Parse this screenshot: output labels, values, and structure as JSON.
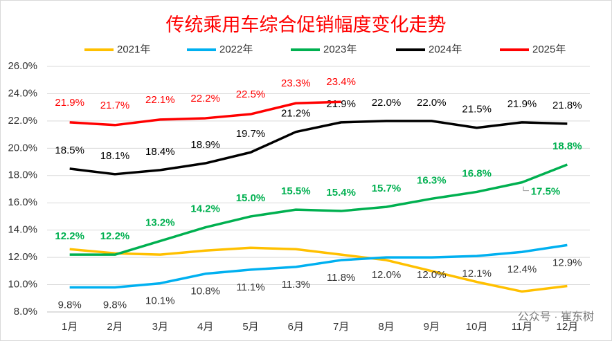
{
  "chart_data": {
    "type": "line",
    "title": "传统乘用车综合促销幅度变化走势",
    "categories": [
      "1月",
      "2月",
      "3月",
      "4月",
      "5月",
      "6月",
      "7月",
      "8月",
      "9月",
      "10月",
      "11月",
      "12月"
    ],
    "series": [
      {
        "name": "2021年",
        "color": "#ffc000",
        "values": [
          12.6,
          12.3,
          12.2,
          12.5,
          12.7,
          12.6,
          12.2,
          11.8,
          11.0,
          10.2,
          9.5,
          9.9
        ]
      },
      {
        "name": "2022年",
        "color": "#00b0f0",
        "values": [
          9.8,
          9.8,
          10.1,
          10.8,
          11.1,
          11.3,
          11.8,
          12.0,
          12.0,
          12.1,
          12.4,
          12.9
        ],
        "value_labels": [
          "9.8%",
          "9.8%",
          "10.1%",
          "10.8%",
          "11.1%",
          "11.3%",
          "11.8%",
          "12.0%",
          "12.0%",
          "12.1%",
          "12.4%",
          "12.9%"
        ]
      },
      {
        "name": "2023年",
        "color": "#00b050",
        "values": [
          12.2,
          12.2,
          13.2,
          14.2,
          15.0,
          15.5,
          15.4,
          15.7,
          16.3,
          16.8,
          17.5,
          18.8
        ],
        "value_labels": [
          "12.2%",
          "12.2%",
          "13.2%",
          "14.2%",
          "15.0%",
          "15.5%",
          "15.4%",
          "15.7%",
          "16.3%",
          "16.8%",
          "17.5%",
          "18.8%"
        ]
      },
      {
        "name": "2024年",
        "color": "#000000",
        "values": [
          18.5,
          18.1,
          18.4,
          18.9,
          19.7,
          21.2,
          21.9,
          22.0,
          22.0,
          21.5,
          21.9,
          21.8
        ],
        "value_labels": [
          "18.5%",
          "18.1%",
          "18.4%",
          "18.9%",
          "19.7%",
          "21.2%",
          "21.9%",
          "22.0%",
          "22.0%",
          "21.5%",
          "21.9%",
          "21.8%"
        ]
      },
      {
        "name": "2025年",
        "color": "#ff0000",
        "values": [
          21.9,
          21.7,
          22.1,
          22.2,
          22.5,
          23.3,
          23.4,
          null,
          null,
          null,
          null,
          null
        ],
        "value_labels": [
          "21.9%",
          "21.7%",
          "22.1%",
          "22.2%",
          "22.5%",
          "23.3%",
          "23.4%",
          null,
          null,
          null,
          null,
          null
        ]
      }
    ],
    "ylim": [
      8,
      26
    ],
    "yticks": [
      {
        "value": 8,
        "label": "8.0%"
      },
      {
        "value": 10,
        "label": "10.0%"
      },
      {
        "value": 12,
        "label": "12.0%"
      },
      {
        "value": 14,
        "label": "14.0%"
      },
      {
        "value": 16,
        "label": "16.0%"
      },
      {
        "value": 18,
        "label": "18.0%"
      },
      {
        "value": 20,
        "label": "20.0%"
      },
      {
        "value": 22,
        "label": "22.0%"
      },
      {
        "value": 24,
        "label": "24.0%"
      },
      {
        "value": 26,
        "label": "26.0%"
      }
    ],
    "grid": true,
    "legend": "top",
    "watermark": "公众号 · 崔东树"
  }
}
